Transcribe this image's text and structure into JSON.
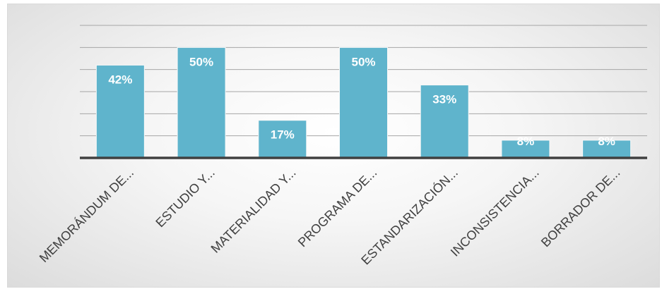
{
  "chart_data": {
    "type": "bar",
    "categories": [
      "MEMORÁNDUM DE...",
      "ESTUDIO Y...",
      "MATERIALIDAD Y...",
      "PROGRAMA DE...",
      "ESTANDARIZACIÓN...",
      "INCONSISTENCIA...",
      "BORRADOR DE..."
    ],
    "values": [
      42,
      50,
      17,
      50,
      33,
      8,
      8
    ],
    "data_labels": [
      "42%",
      "50%",
      "17%",
      "50%",
      "33%",
      "8%",
      "8%"
    ],
    "ylim": [
      0,
      60
    ],
    "grid": true,
    "grid_step": 10,
    "bar_color": "#5fb4cc",
    "axis_color": "#404040",
    "label_color": "#ffffff"
  }
}
